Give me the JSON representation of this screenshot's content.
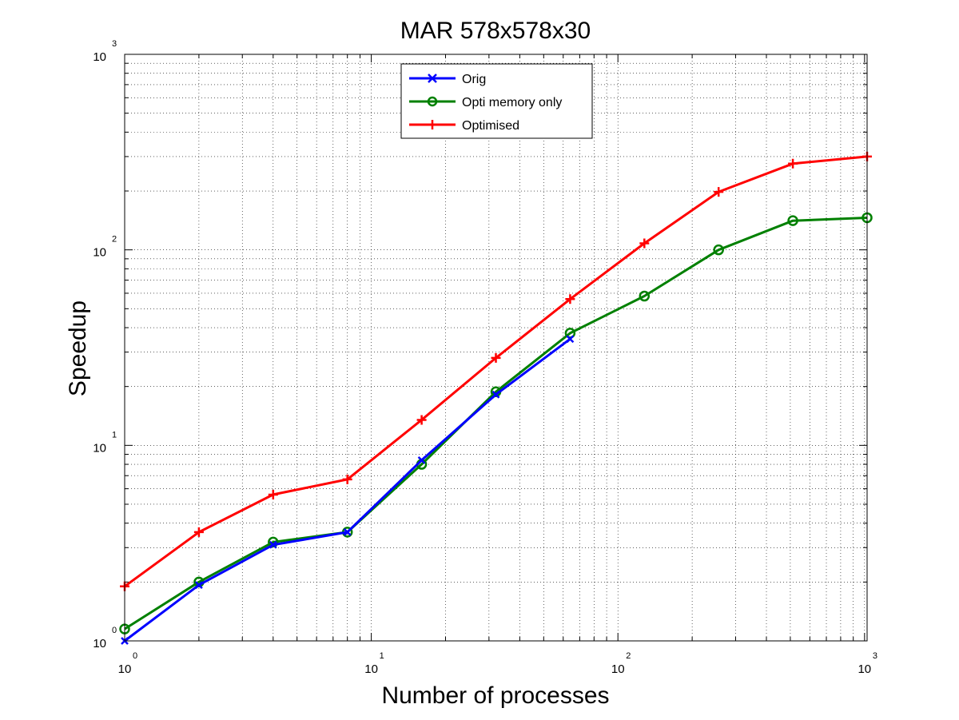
{
  "chart_data": {
    "type": "line",
    "title": "MAR 578x578x30",
    "xlabel": "Number of processes",
    "ylabel": "Speedup",
    "xscale": "log",
    "yscale": "log",
    "xlim": [
      1,
      1024
    ],
    "ylim": [
      1,
      1000
    ],
    "grid": true,
    "legend_position": "top-center",
    "x_tick_labels": [
      {
        "base": "10",
        "exp": "0"
      },
      {
        "base": "10",
        "exp": "1"
      },
      {
        "base": "10",
        "exp": "2"
      },
      {
        "base": "10",
        "exp": "3"
      }
    ],
    "y_tick_labels": [
      {
        "base": "10",
        "exp": "0"
      },
      {
        "base": "10",
        "exp": "1"
      },
      {
        "base": "10",
        "exp": "2"
      },
      {
        "base": "10",
        "exp": "3"
      }
    ],
    "series": [
      {
        "name": "Orig",
        "color": "#0000ff",
        "marker": "x",
        "x": [
          1,
          2,
          4,
          8,
          16,
          32,
          64
        ],
        "values": [
          1.0,
          1.93,
          3.1,
          3.6,
          8.4,
          18.2,
          35
        ]
      },
      {
        "name": "Opti memory only",
        "color": "#008000",
        "marker": "o",
        "x": [
          1,
          2,
          4,
          8,
          16,
          32,
          64,
          128,
          256,
          512,
          1024
        ],
        "values": [
          1.15,
          2.0,
          3.2,
          3.6,
          8.0,
          18.8,
          37.5,
          58,
          100,
          141,
          146
        ]
      },
      {
        "name": "Optimised",
        "color": "#ff0000",
        "marker": "+",
        "x": [
          1,
          2,
          4,
          8,
          16,
          32,
          64,
          128,
          256,
          512,
          1024
        ],
        "values": [
          1.9,
          3.6,
          5.6,
          6.7,
          13.5,
          28,
          56,
          108,
          198,
          276,
          300
        ]
      }
    ]
  }
}
